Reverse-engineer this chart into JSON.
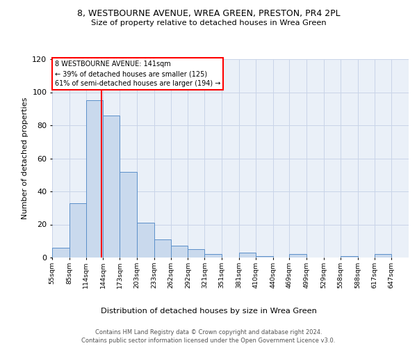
{
  "title": "8, WESTBOURNE AVENUE, WREA GREEN, PRESTON, PR4 2PL",
  "subtitle": "Size of property relative to detached houses in Wrea Green",
  "xlabel": "Distribution of detached houses by size in Wrea Green",
  "ylabel": "Number of detached properties",
  "bin_edges": [
    55,
    85,
    114,
    144,
    173,
    203,
    233,
    262,
    292,
    321,
    351,
    381,
    410,
    440,
    469,
    499,
    529,
    558,
    588,
    617,
    647,
    677
  ],
  "bin_labels": [
    "55sqm",
    "85sqm",
    "114sqm",
    "144sqm",
    "173sqm",
    "203sqm",
    "233sqm",
    "262sqm",
    "292sqm",
    "321sqm",
    "351sqm",
    "381sqm",
    "410sqm",
    "440sqm",
    "469sqm",
    "499sqm",
    "529sqm",
    "558sqm",
    "588sqm",
    "617sqm",
    "647sqm"
  ],
  "counts": [
    6,
    33,
    95,
    86,
    52,
    21,
    11,
    7,
    5,
    2,
    0,
    3,
    1,
    0,
    2,
    0,
    0,
    1,
    0,
    2,
    0
  ],
  "bar_facecolor": "#c9d9ed",
  "bar_edgecolor": "#5b8fc9",
  "vline_x": 141,
  "vline_color": "red",
  "annotation_line1": "8 WESTBOURNE AVENUE: 141sqm",
  "annotation_line2": "← 39% of detached houses are smaller (125)",
  "annotation_line3": "61% of semi-detached houses are larger (194) →",
  "annotation_box_edgecolor": "red",
  "annotation_box_facecolor": "white",
  "ylim": [
    0,
    120
  ],
  "yticks": [
    0,
    20,
    40,
    60,
    80,
    100,
    120
  ],
  "grid_color": "#c8d4e8",
  "bg_color": "#eaf0f8",
  "footer_line1": "Contains HM Land Registry data © Crown copyright and database right 2024.",
  "footer_line2": "Contains public sector information licensed under the Open Government Licence v3.0."
}
